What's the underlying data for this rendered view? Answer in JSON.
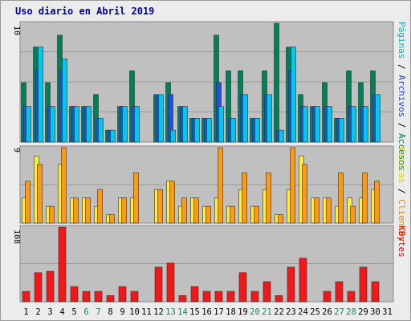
{
  "title": "Uso diario en Abril 2019",
  "chart_data": [
    {
      "type": "bar",
      "title": "Uso diario en Abril 2019",
      "axis_max_label": "10",
      "right_labels": [
        "Accesos",
        "Archivos",
        "Páginas"
      ],
      "right_separators": [
        "/",
        "/"
      ],
      "right_label_colors": [
        "#008040",
        "#2040c0",
        "#00b0c0"
      ],
      "categories": [
        "1",
        "2",
        "3",
        "4",
        "5",
        "6",
        "7",
        "8",
        "9",
        "10",
        "11",
        "12",
        "13",
        "14",
        "15",
        "16",
        "17",
        "18",
        "19",
        "20",
        "21",
        "22",
        "23",
        "24",
        "25",
        "26",
        "27",
        "28",
        "29",
        "30",
        "31"
      ],
      "series": [
        {
          "name": "Accesos",
          "color": "#00805a",
          "values": [
            5,
            8,
            5,
            9,
            3,
            3,
            4,
            1,
            3,
            6,
            0,
            4,
            5,
            3,
            2,
            2,
            9,
            6,
            6,
            2,
            6,
            10,
            8,
            4,
            3,
            5,
            2,
            6,
            5,
            6,
            0
          ]
        },
        {
          "name": "Archivos",
          "color": "#2050d8",
          "values": [
            3,
            6,
            3,
            6,
            3,
            3,
            2,
            1,
            3,
            3,
            0,
            4,
            4,
            3,
            2,
            2,
            5,
            2,
            4,
            2,
            4,
            1,
            6,
            3,
            3,
            3,
            2,
            3,
            3,
            4,
            0
          ]
        },
        {
          "name": "Páginas",
          "color": "#00c8f0",
          "values": [
            3,
            8,
            3,
            7,
            3,
            3,
            2,
            1,
            3,
            3,
            0,
            4,
            1,
            3,
            2,
            2,
            3,
            2,
            4,
            2,
            4,
            1,
            8,
            3,
            3,
            3,
            2,
            3,
            3,
            4,
            0
          ]
        }
      ],
      "ylim": [
        0,
        10
      ]
    },
    {
      "type": "bar",
      "axis_max_label": "9",
      "right_labels": [
        "Clientes",
        "Visitas"
      ],
      "right_separators": [
        "/"
      ],
      "right_label_colors": [
        "#f08000",
        "#e0d000"
      ],
      "categories": [
        "1",
        "2",
        "3",
        "4",
        "5",
        "6",
        "7",
        "8",
        "9",
        "10",
        "11",
        "12",
        "13",
        "14",
        "15",
        "16",
        "17",
        "18",
        "19",
        "20",
        "21",
        "22",
        "23",
        "24",
        "25",
        "26",
        "27",
        "28",
        "29",
        "30",
        "31"
      ],
      "series": [
        {
          "name": "Visitas",
          "color": "#ffee40",
          "values": [
            3,
            8,
            2,
            7,
            3,
            3,
            2,
            1,
            3,
            3,
            0,
            4,
            5,
            2,
            3,
            2,
            3,
            2,
            4,
            2,
            4,
            1,
            4,
            8,
            3,
            3,
            2,
            3,
            3,
            4,
            0
          ]
        },
        {
          "name": "Clientes",
          "color": "#ff9a10",
          "values": [
            5,
            7,
            2,
            9,
            3,
            3,
            4,
            1,
            3,
            6,
            0,
            4,
            5,
            3,
            3,
            2,
            9,
            2,
            6,
            2,
            6,
            1,
            9,
            7,
            3,
            3,
            6,
            2,
            6,
            5,
            0
          ]
        }
      ],
      "ylim": [
        0,
        9
      ]
    },
    {
      "type": "bar",
      "axis_max_label": "108",
      "right_labels": [
        "KBytes"
      ],
      "right_separators": [],
      "right_label_colors": [
        "#e00000"
      ],
      "categories": [
        "1",
        "2",
        "3",
        "4",
        "5",
        "6",
        "7",
        "8",
        "9",
        "10",
        "11",
        "12",
        "13",
        "14",
        "15",
        "16",
        "17",
        "18",
        "19",
        "20",
        "21",
        "22",
        "23",
        "24",
        "25",
        "26",
        "27",
        "28",
        "29",
        "30",
        "31"
      ],
      "series": [
        {
          "name": "KBytes",
          "color": "#f01818",
          "values": [
            15,
            42,
            44,
            108,
            22,
            15,
            15,
            9,
            22,
            15,
            0,
            50,
            56,
            9,
            22,
            15,
            15,
            15,
            42,
            15,
            29,
            9,
            50,
            63,
            0,
            15,
            29,
            15,
            50,
            29,
            0
          ]
        }
      ],
      "ylim": [
        0,
        108
      ]
    }
  ],
  "x_axis": {
    "labels": [
      "1",
      "2",
      "3",
      "4",
      "5",
      "6",
      "7",
      "8",
      "9",
      "10",
      "11",
      "12",
      "13",
      "14",
      "15",
      "16",
      "17",
      "18",
      "19",
      "20",
      "21",
      "22",
      "23",
      "24",
      "25",
      "26",
      "27",
      "28",
      "29",
      "30",
      "31"
    ],
    "weekend_days": [
      "6",
      "7",
      "13",
      "14",
      "20",
      "21",
      "27",
      "28"
    ],
    "weekday_color": "#000000",
    "weekend_color": "#208060"
  }
}
